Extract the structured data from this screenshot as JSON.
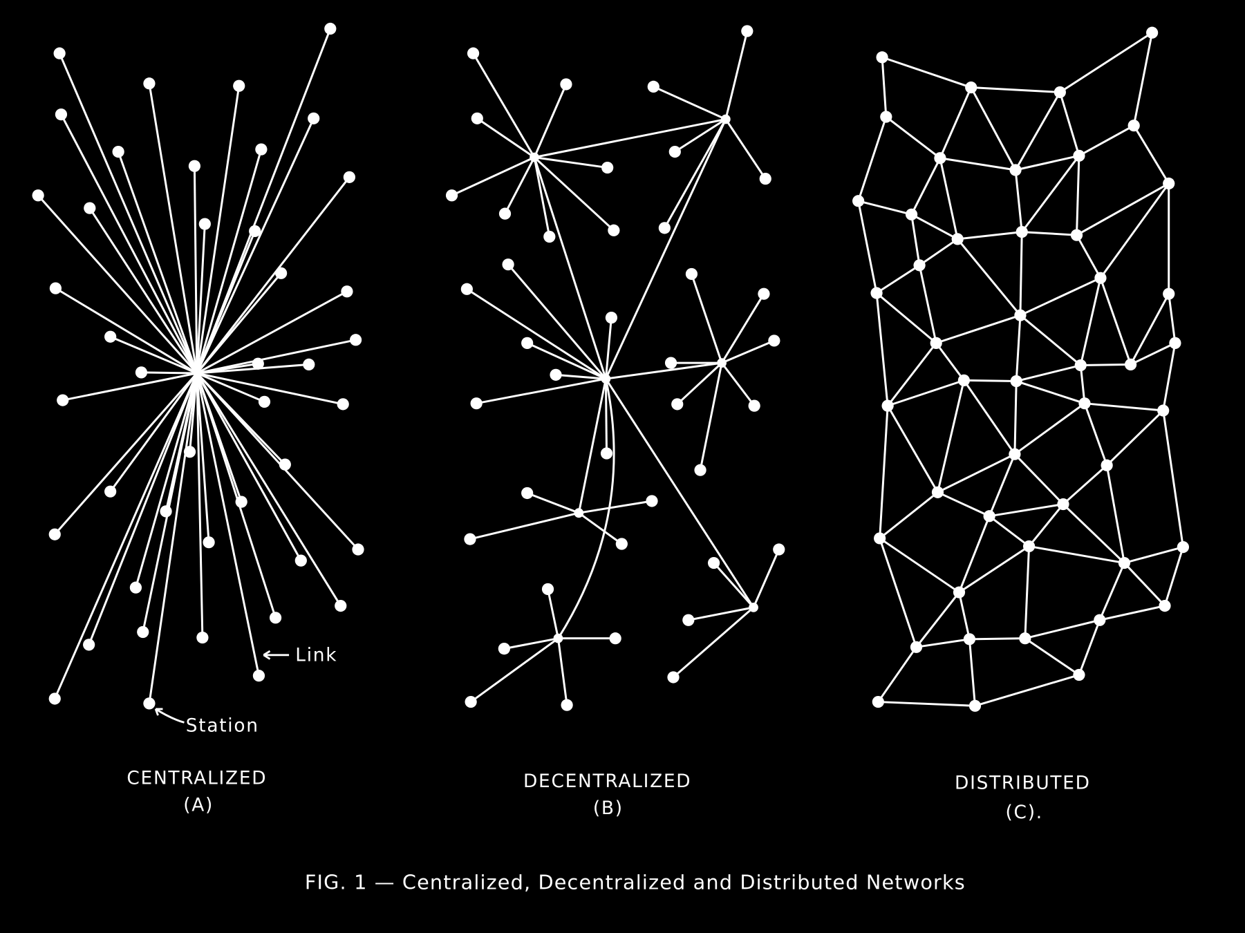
{
  "annotations": {
    "link": "Link",
    "station": "Station"
  },
  "panels": [
    {
      "title": "CENTRALIZED",
      "label": "(A)"
    },
    {
      "title": "DECENTRALIZED",
      "label": "(B)"
    },
    {
      "title": "DISTRIBUTED",
      "label": "(C)."
    }
  ],
  "caption": "FIG. 1 — Centralized, Decentralized and Distributed Networks"
}
